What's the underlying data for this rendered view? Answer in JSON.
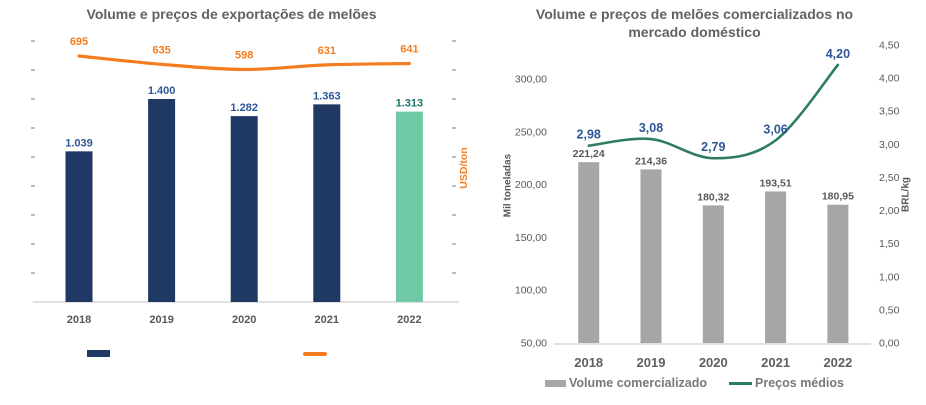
{
  "chart_data": [
    {
      "type": "combo bar+line",
      "title": "Volume e preços de exportações de melões",
      "categories": [
        "2018",
        "2019",
        "2020",
        "2021",
        "2022"
      ],
      "series": [
        {
          "type": "bar",
          "axis": "primary",
          "values": [
            1039,
            1400,
            1282,
            1363,
            1313
          ],
          "data_labels": [
            "1.039",
            "1.400",
            "1.282",
            "1.363",
            "1.313"
          ],
          "colors": {
            "bar": "#1F3864",
            "bar_2022": "#6FC9A4",
            "label": "#2E5597",
            "label_2022": "#1A7468"
          }
        },
        {
          "type": "line",
          "axis": "secondary",
          "values": [
            695,
            635,
            598,
            631,
            641
          ],
          "data_labels": [
            "695",
            "635",
            "598",
            "631",
            "641"
          ],
          "colors": {
            "line": "#F57D1F",
            "label": "#F57D1F"
          }
        }
      ],
      "primary_axis": {
        "min": 0,
        "max": 1800,
        "major_unit": 200,
        "tick_labels_visible": false
      },
      "secondary_axis": {
        "title": "USD/ton",
        "tick_labels_visible": false
      },
      "axis_color": "#D9D9D9",
      "tick_color": "#A6A6A6",
      "category_label_color": "#595959",
      "gridlines": false,
      "legend_position": "bottom",
      "legend": [
        {
          "swatch": "bar",
          "label": ""
        },
        {
          "swatch": "line",
          "label": ""
        }
      ]
    },
    {
      "type": "combo bar+line",
      "title": "Volume e preços de melões comercializados no mercado doméstico",
      "categories": [
        "2018",
        "2019",
        "2020",
        "2021",
        "2022"
      ],
      "series": [
        {
          "name": "Volume comercializado",
          "type": "bar",
          "axis": "primary",
          "values": [
            221.24,
            214.36,
            180.32,
            193.51,
            180.95
          ],
          "data_labels": [
            "221,24",
            "214,36",
            "180,32",
            "193,51",
            "180,95"
          ],
          "colors": {
            "bar": "#A6A6A6",
            "label": "#595959"
          }
        },
        {
          "name": "Preços médios",
          "type": "line",
          "axis": "secondary",
          "values": [
            2.98,
            3.08,
            2.79,
            3.06,
            4.2
          ],
          "data_labels": [
            "2,98",
            "3,08",
            "2,79",
            "3,06",
            "4,20"
          ],
          "colors": {
            "line": "#2E7D5E",
            "label": "#2E5597"
          }
        }
      ],
      "primary_axis": {
        "title": "Mil toneladas",
        "min": 50,
        "max": 300,
        "major_unit": 50,
        "tick_labels": [
          "50,00",
          "100,00",
          "150,00",
          "200,00",
          "250,00",
          "300,00"
        ]
      },
      "secondary_axis": {
        "title": "BRL/kg",
        "min": 0,
        "max": 4.5,
        "major_unit": 0.5,
        "tick_labels": [
          "0,00",
          "0,50",
          "1,00",
          "1,50",
          "2,00",
          "2,50",
          "3,00",
          "3,50",
          "4,00",
          "4,50"
        ]
      },
      "axis_color": "#D9D9D9",
      "tick_label_color": "#595959",
      "category_label_color": "#606060",
      "legend_text_color": "#787878",
      "gridlines": false,
      "legend_position": "bottom",
      "legend": [
        {
          "swatch": "bar",
          "label": "Volume comercializado"
        },
        {
          "swatch": "line",
          "label": "Preços médios"
        }
      ]
    }
  ]
}
